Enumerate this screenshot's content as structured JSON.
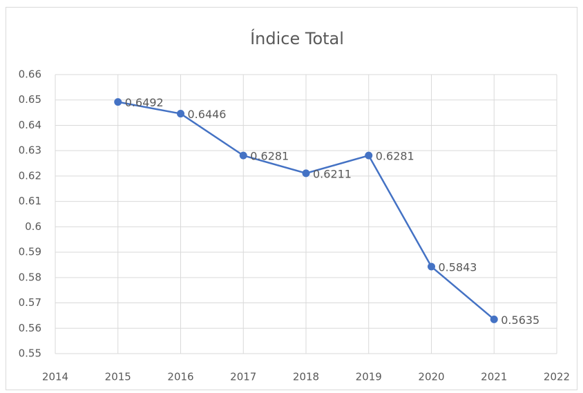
{
  "chart_data": {
    "type": "line",
    "title": "Índice Total",
    "x": [
      2015,
      2016,
      2017,
      2018,
      2019,
      2020,
      2021
    ],
    "series": [
      {
        "name": "Índice Total",
        "color": "#4472c4",
        "values": [
          0.6492,
          0.6446,
          0.6281,
          0.6211,
          0.6281,
          0.5843,
          0.5635
        ]
      }
    ],
    "xlim": [
      2014,
      2022
    ],
    "xticks": [
      2014,
      2015,
      2016,
      2017,
      2018,
      2019,
      2020,
      2021,
      2022
    ],
    "ylim": [
      0.55,
      0.66
    ],
    "yticks": [
      0.55,
      0.56,
      0.57,
      0.58,
      0.59,
      0.6,
      0.61,
      0.62,
      0.63,
      0.64,
      0.65,
      0.66
    ],
    "grid": true,
    "data_labels": true
  }
}
